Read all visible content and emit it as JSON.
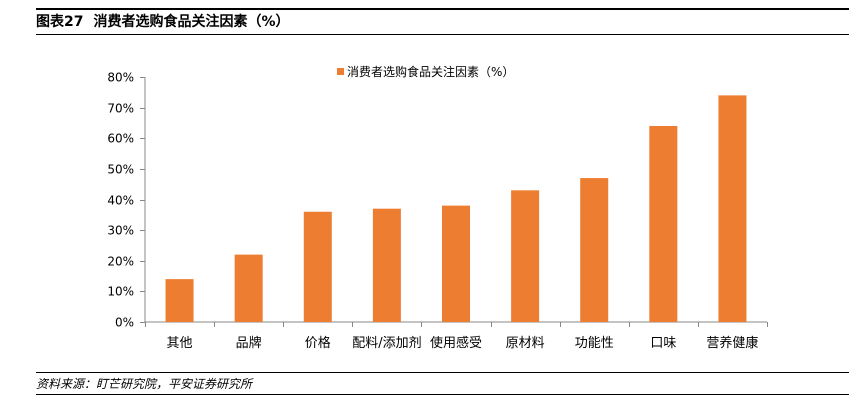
{
  "figure": {
    "number": "图表27",
    "title": "消费者选购食品关注因素（%）"
  },
  "source": "资料来源：盯芒研究院，平安证券研究所",
  "colors": {
    "bar": "#ED7D31",
    "axis": "#888888",
    "text": "#000000"
  },
  "chart_data": {
    "type": "bar",
    "title": "",
    "xlabel": "",
    "ylabel": "",
    "ylim": [
      0,
      0.8
    ],
    "y_ticks": [
      0,
      0.1,
      0.2,
      0.3,
      0.4,
      0.5,
      0.6,
      0.7,
      0.8
    ],
    "y_tick_labels": [
      "0%",
      "10%",
      "20%",
      "30%",
      "40%",
      "50%",
      "60%",
      "70%",
      "80%"
    ],
    "grid": false,
    "legend_position": "top-center",
    "categories": [
      "其他",
      "品牌",
      "价格",
      "配料/添加剂",
      "使用感受",
      "原材料",
      "功能性",
      "口味",
      "营养健康"
    ],
    "series": [
      {
        "name": "消费者选购食品关注因素（%）",
        "values": [
          0.14,
          0.22,
          0.36,
          0.37,
          0.38,
          0.43,
          0.47,
          0.64,
          0.74
        ]
      }
    ]
  }
}
